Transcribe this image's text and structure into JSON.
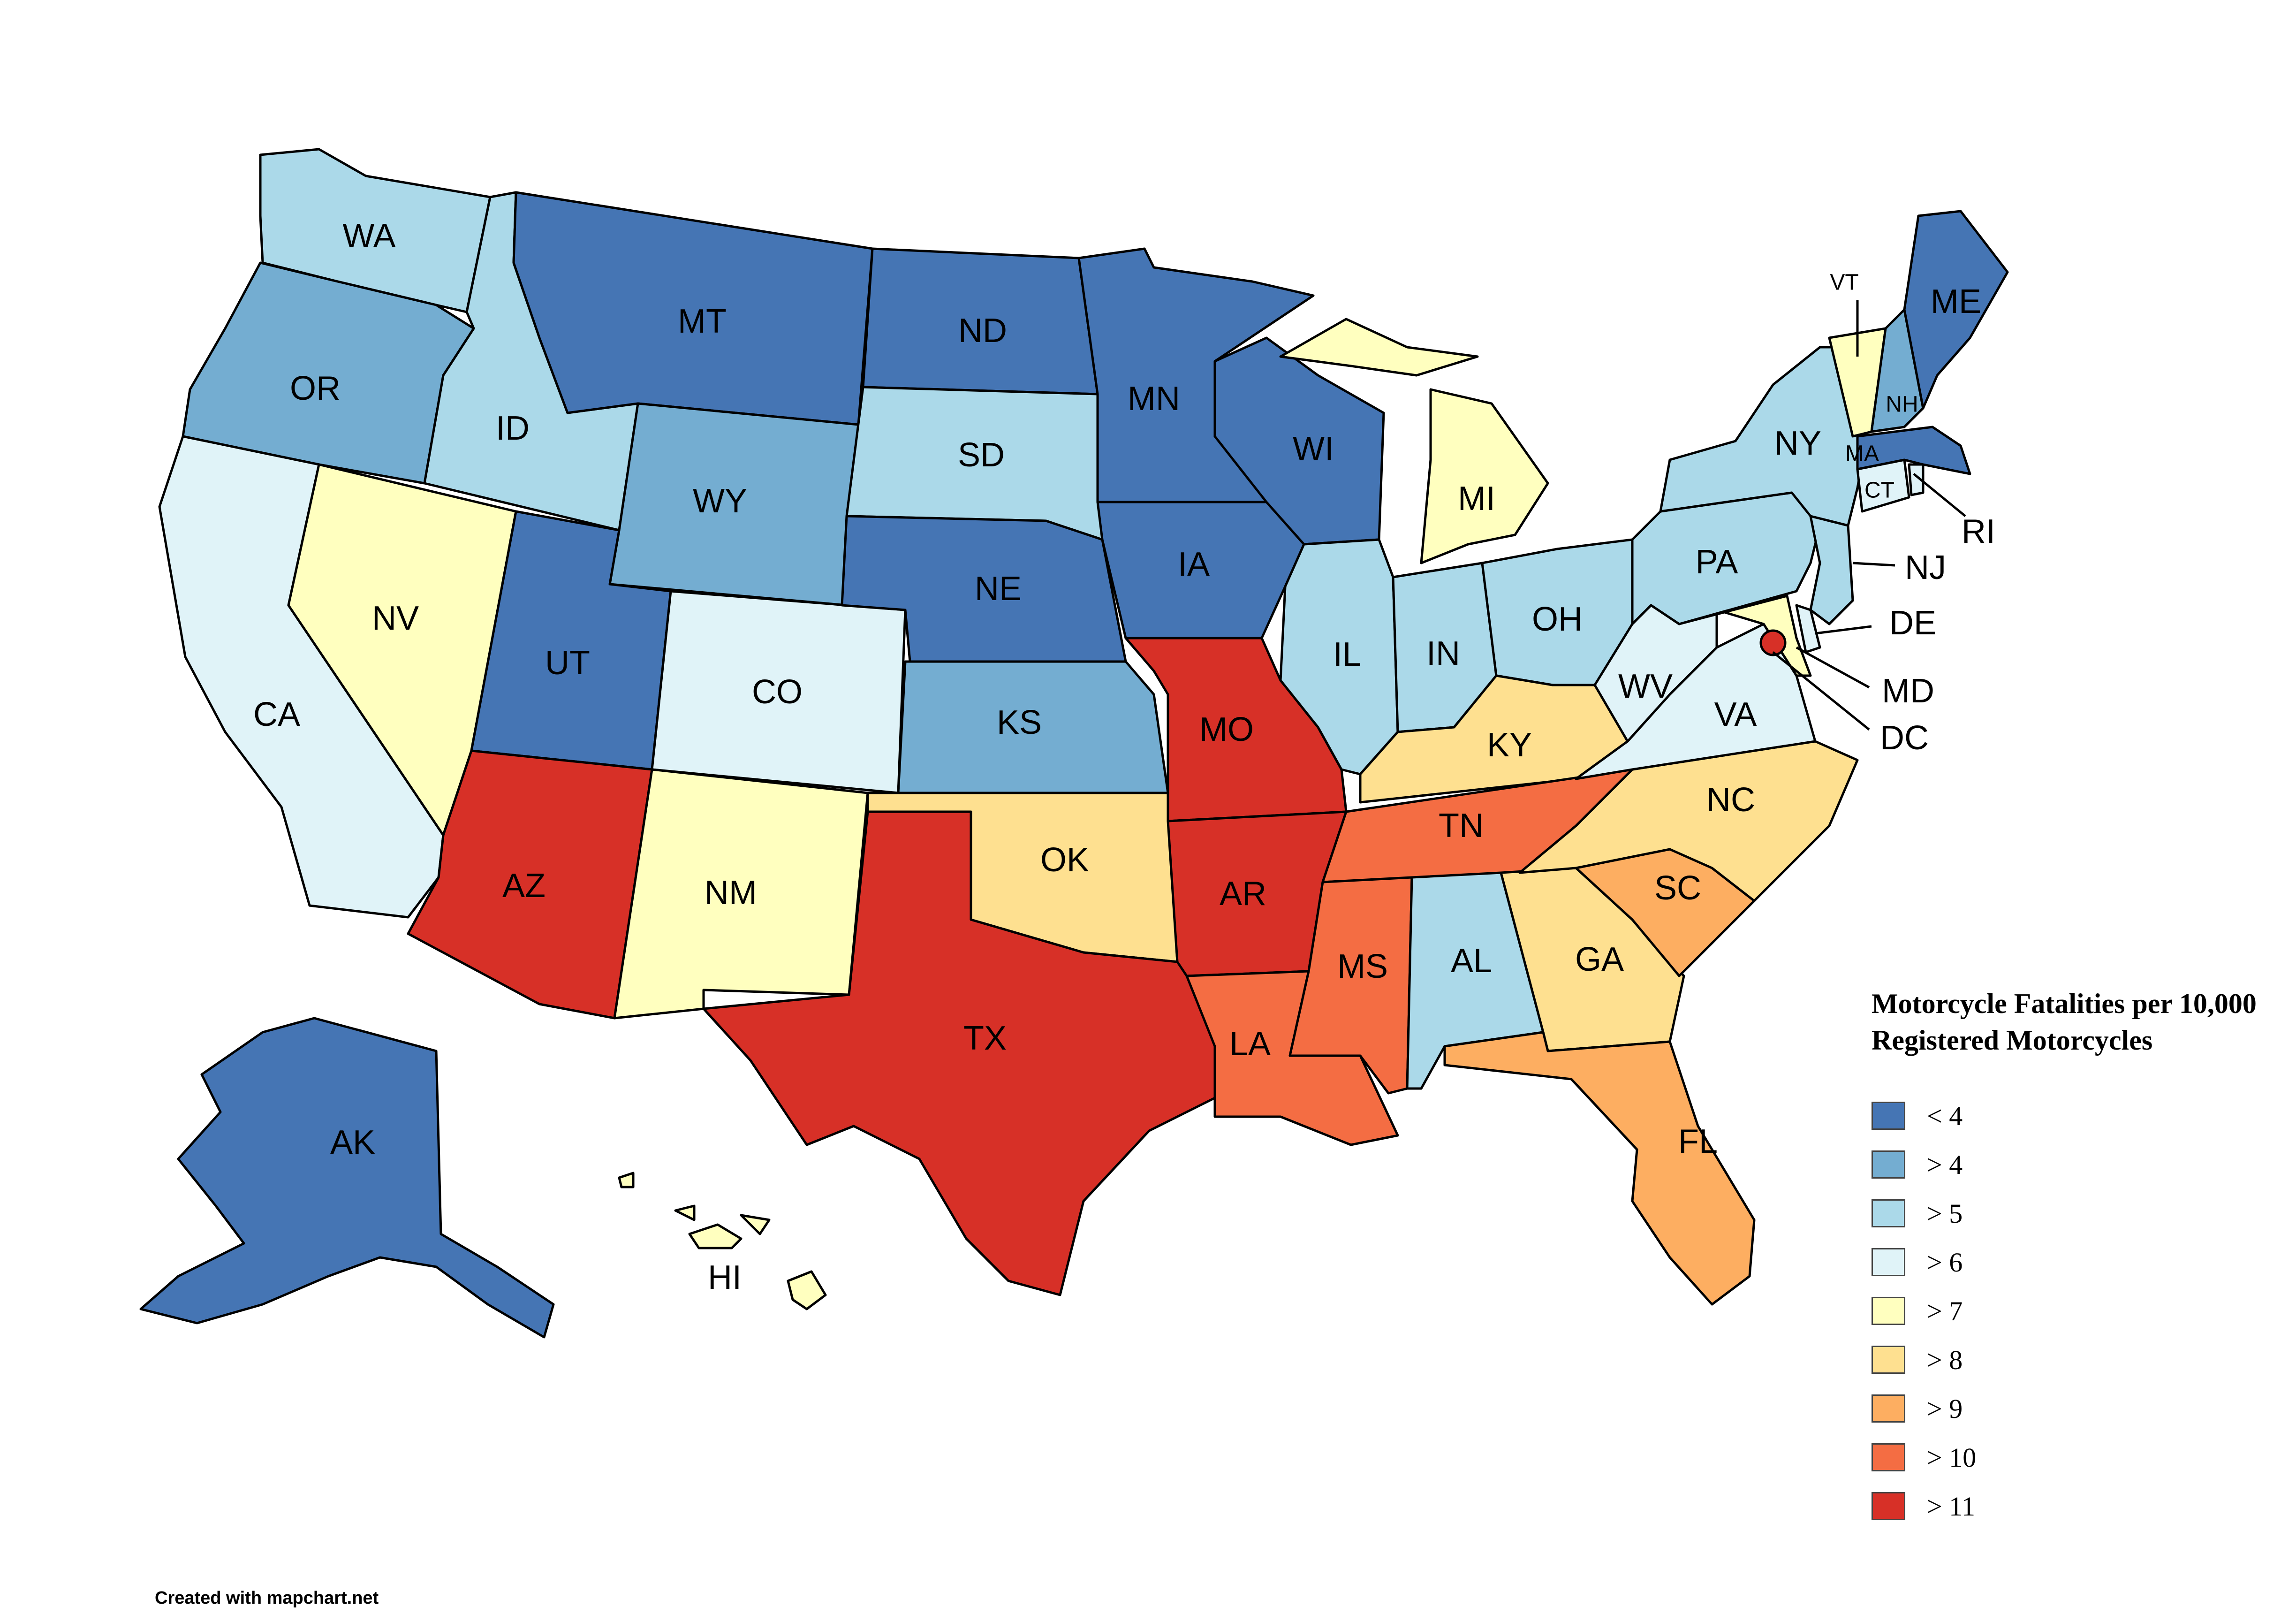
{
  "legend": {
    "title": "Motorcycle Fatalities per 10,000 Registered Motorcycles",
    "entries": [
      {
        "label": "< 4",
        "color": "#4575b4"
      },
      {
        "label": "> 4",
        "color": "#74add1"
      },
      {
        "label": "> 5",
        "color": "#abd9e9"
      },
      {
        "label": "> 6",
        "color": "#e0f3f8"
      },
      {
        "label": "> 7",
        "color": "#ffffbf"
      },
      {
        "label": "> 8",
        "color": "#fee090"
      },
      {
        "label": "> 9",
        "color": "#fdae61"
      },
      {
        "label": "> 10",
        "color": "#f46d43"
      },
      {
        "label": "> 11",
        "color": "#d73027"
      }
    ]
  },
  "states": [
    {
      "abbr": "WA",
      "bin": "> 5"
    },
    {
      "abbr": "OR",
      "bin": "> 4"
    },
    {
      "abbr": "CA",
      "bin": "> 6"
    },
    {
      "abbr": "ID",
      "bin": "> 5"
    },
    {
      "abbr": "NV",
      "bin": "> 7"
    },
    {
      "abbr": "MT",
      "bin": "< 4"
    },
    {
      "abbr": "WY",
      "bin": "> 4"
    },
    {
      "abbr": "UT",
      "bin": "< 4"
    },
    {
      "abbr": "AZ",
      "bin": "> 11"
    },
    {
      "abbr": "CO",
      "bin": "> 6"
    },
    {
      "abbr": "NM",
      "bin": "> 7"
    },
    {
      "abbr": "ND",
      "bin": "< 4"
    },
    {
      "abbr": "SD",
      "bin": "> 5"
    },
    {
      "abbr": "NE",
      "bin": "< 4"
    },
    {
      "abbr": "KS",
      "bin": "> 4"
    },
    {
      "abbr": "OK",
      "bin": "> 8"
    },
    {
      "abbr": "TX",
      "bin": "> 11"
    },
    {
      "abbr": "MN",
      "bin": "< 4"
    },
    {
      "abbr": "IA",
      "bin": "< 4"
    },
    {
      "abbr": "MO",
      "bin": "> 11"
    },
    {
      "abbr": "AR",
      "bin": "> 11"
    },
    {
      "abbr": "LA",
      "bin": "> 10"
    },
    {
      "abbr": "WI",
      "bin": "< 4"
    },
    {
      "abbr": "IL",
      "bin": "> 5"
    },
    {
      "abbr": "MI",
      "bin": "> 7"
    },
    {
      "abbr": "IN",
      "bin": "> 5"
    },
    {
      "abbr": "OH",
      "bin": "> 5"
    },
    {
      "abbr": "KY",
      "bin": "> 8"
    },
    {
      "abbr": "TN",
      "bin": "> 10"
    },
    {
      "abbr": "MS",
      "bin": "> 10"
    },
    {
      "abbr": "AL",
      "bin": "> 5"
    },
    {
      "abbr": "GA",
      "bin": "> 8"
    },
    {
      "abbr": "FL",
      "bin": "> 9"
    },
    {
      "abbr": "SC",
      "bin": "> 9"
    },
    {
      "abbr": "NC",
      "bin": "> 8"
    },
    {
      "abbr": "VA",
      "bin": "> 6"
    },
    {
      "abbr": "WV",
      "bin": "> 6"
    },
    {
      "abbr": "MD",
      "bin": "> 7"
    },
    {
      "abbr": "DE",
      "bin": "> 6"
    },
    {
      "abbr": "DC",
      "bin": "> 11"
    },
    {
      "abbr": "PA",
      "bin": "> 5"
    },
    {
      "abbr": "NJ",
      "bin": "> 5"
    },
    {
      "abbr": "NY",
      "bin": "> 5"
    },
    {
      "abbr": "CT",
      "bin": "> 6"
    },
    {
      "abbr": "RI",
      "bin": "> 6"
    },
    {
      "abbr": "MA",
      "bin": "< 4"
    },
    {
      "abbr": "VT",
      "bin": "> 7"
    },
    {
      "abbr": "NH",
      "bin": "> 4"
    },
    {
      "abbr": "ME",
      "bin": "< 4"
    },
    {
      "abbr": "AK",
      "bin": "< 4"
    },
    {
      "abbr": "HI",
      "bin": "> 7"
    }
  ],
  "credit": "Created with mapchart.net"
}
